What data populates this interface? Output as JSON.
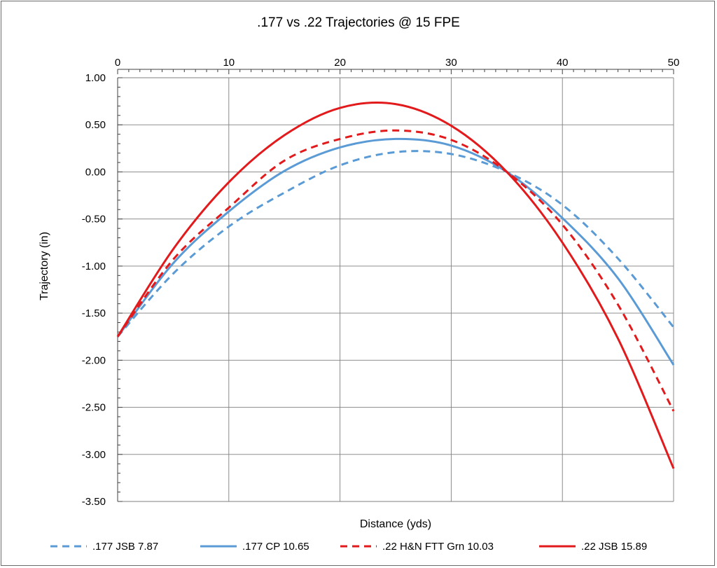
{
  "chart_data": {
    "type": "line",
    "title": ".177 vs .22 Trajectories @ 15 FPE",
    "xlabel": "Distance (yds)",
    "ylabel": "Trajectory (in)",
    "xlim": [
      0,
      50
    ],
    "ylim": [
      -3.5,
      1.0
    ],
    "x_ticks": [
      0,
      10,
      20,
      30,
      40,
      50
    ],
    "x_tick_labels": [
      "0",
      "10",
      "20",
      "30",
      "40",
      "50"
    ],
    "y_ticks": [
      1.0,
      0.5,
      0.0,
      -0.5,
      -1.0,
      -1.5,
      -2.0,
      -2.5,
      -3.0,
      -3.5
    ],
    "y_tick_labels": [
      "1.00",
      "0.50",
      "0.00",
      "-0.50",
      "-1.00",
      "-1.50",
      "-2.00",
      "-2.50",
      "-3.00",
      "-3.50"
    ],
    "x_axis_position": "top",
    "grid": true,
    "legend_position": "bottom",
    "x": [
      0,
      5,
      10,
      15,
      20,
      25,
      30,
      35,
      40,
      45,
      50
    ],
    "series": [
      {
        "name": ".177 JSB 7.87",
        "color": "#5b9bd5",
        "dash": "dashed",
        "values": [
          -1.75,
          -1.08,
          -0.58,
          -0.22,
          0.07,
          0.21,
          0.19,
          0.0,
          -0.35,
          -0.92,
          -1.65
        ]
      },
      {
        "name": ".177 CP 10.65",
        "color": "#5b9bd5",
        "dash": "solid",
        "values": [
          -1.75,
          -0.97,
          -0.42,
          0.01,
          0.26,
          0.35,
          0.28,
          0.0,
          -0.49,
          -1.13,
          -2.05
        ]
      },
      {
        "name": ".22 H&N FTT Grn 10.03",
        "color": "#e31a1c",
        "dash": "dashed",
        "values": [
          -1.75,
          -0.93,
          -0.38,
          0.12,
          0.35,
          0.44,
          0.34,
          0.0,
          -0.56,
          -1.41,
          -2.54
        ]
      },
      {
        "name": ".22 JSB 15.89",
        "color": "#e31a1c",
        "dash": "solid",
        "values": [
          -1.75,
          -0.82,
          -0.11,
          0.39,
          0.68,
          0.72,
          0.49,
          0.0,
          -0.75,
          -1.77,
          -3.15
        ]
      }
    ]
  }
}
